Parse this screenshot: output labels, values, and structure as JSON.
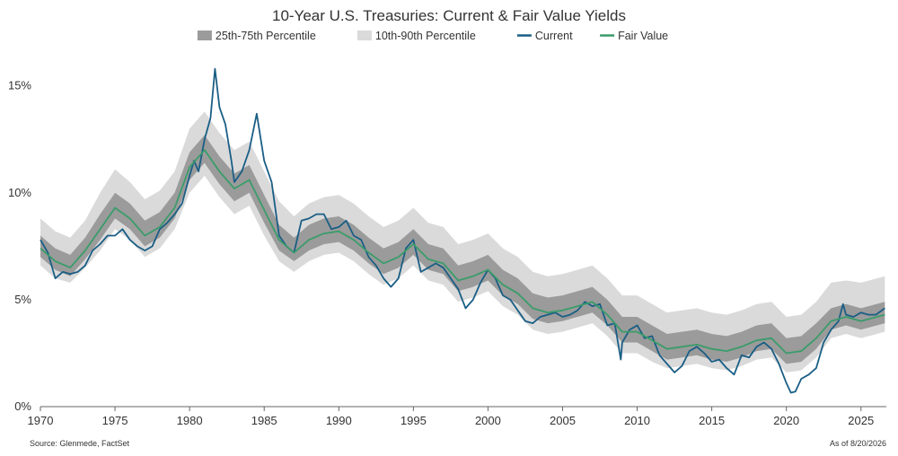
{
  "chart_data": {
    "type": "line",
    "title": "10-Year U.S. Treasuries: Current & Fair Value Yields",
    "xlabel": "",
    "ylabel": "",
    "x_ticks": [
      "1970",
      "1975",
      "1980",
      "1985",
      "1990",
      "1995",
      "2000",
      "2005",
      "2010",
      "2015",
      "2020",
      "2025"
    ],
    "y_ticks": [
      "0%",
      "5%",
      "10%",
      "15%"
    ],
    "xlim": [
      1970,
      2026.7
    ],
    "ylim": [
      0,
      16.5
    ],
    "grid": false,
    "legend_position": "top-center",
    "legend": [
      {
        "label": "25th-75th Percentile",
        "color": "#9b9b9b",
        "kind": "band"
      },
      {
        "label": "10th-90th Percentile",
        "color": "#dadada",
        "kind": "band"
      },
      {
        "label": "Current",
        "color": "#1a5e85",
        "kind": "line"
      },
      {
        "label": "Fair Value",
        "color": "#3a9c6a",
        "kind": "line"
      }
    ],
    "series": [
      {
        "name": "Fair Value",
        "x": [
          1970,
          1971,
          1972,
          1973,
          1974,
          1975,
          1976,
          1977,
          1978,
          1979,
          1980,
          1981,
          1982,
          1983,
          1984,
          1985,
          1986,
          1987,
          1988,
          1989,
          1990,
          1991,
          1992,
          1993,
          1994,
          1995,
          1996,
          1997,
          1998,
          1999,
          2000,
          2001,
          2002,
          2003,
          2004,
          2005,
          2006,
          2007,
          2008,
          2009,
          2010,
          2011,
          2012,
          2013,
          2014,
          2015,
          2016,
          2017,
          2018,
          2019,
          2020,
          2021,
          2022,
          2023,
          2024,
          2025,
          2026.6
        ],
        "values": [
          7.4,
          6.8,
          6.5,
          7.3,
          8.3,
          9.3,
          8.8,
          8.0,
          8.4,
          9.3,
          11.2,
          12.0,
          11.0,
          10.2,
          10.6,
          9.2,
          7.8,
          7.2,
          7.8,
          8.1,
          8.2,
          7.8,
          7.2,
          6.7,
          7.0,
          7.6,
          6.9,
          6.7,
          5.9,
          6.1,
          6.4,
          5.7,
          5.3,
          4.6,
          4.4,
          4.5,
          4.7,
          4.9,
          4.3,
          3.5,
          3.5,
          3.1,
          2.7,
          2.8,
          2.9,
          2.7,
          2.6,
          2.8,
          3.1,
          3.2,
          2.5,
          2.6,
          3.2,
          4.0,
          4.2,
          4.0,
          4.3
        ]
      },
      {
        "name": "Current",
        "x": [
          1970,
          1970.5,
          1971,
          1971.5,
          1972,
          1972.5,
          1973,
          1973.5,
          1974,
          1974.5,
          1975,
          1975.5,
          1976,
          1976.5,
          1977,
          1977.5,
          1978,
          1978.5,
          1979,
          1979.5,
          1980,
          1980.3,
          1980.6,
          1981,
          1981.4,
          1981.7,
          1982,
          1982.4,
          1982.8,
          1983,
          1983.5,
          1984,
          1984.5,
          1985,
          1985.5,
          1986,
          1986.5,
          1987,
          1987.5,
          1988,
          1988.5,
          1989,
          1989.5,
          1990,
          1990.5,
          1991,
          1991.5,
          1992,
          1992.5,
          1993,
          1993.5,
          1994,
          1994.5,
          1995,
          1995.5,
          1996,
          1996.5,
          1997,
          1997.5,
          1998,
          1998.5,
          1999,
          1999.5,
          2000,
          2000.5,
          2001,
          2001.5,
          2002,
          2002.5,
          2003,
          2003.5,
          2004,
          2004.5,
          2005,
          2005.5,
          2006,
          2006.5,
          2007,
          2007.5,
          2008,
          2008.5,
          2008.9,
          2009,
          2009.5,
          2010,
          2010.5,
          2011,
          2011.5,
          2012,
          2012.5,
          2013,
          2013.5,
          2014,
          2014.5,
          2015,
          2015.5,
          2016,
          2016.5,
          2017,
          2017.5,
          2018,
          2018.5,
          2019,
          2019.5,
          2020,
          2020.3,
          2020.6,
          2021,
          2021.5,
          2022,
          2022.5,
          2023,
          2023.5,
          2023.8,
          2024,
          2024.5,
          2025,
          2025.5,
          2026,
          2026.6
        ],
        "values": [
          7.8,
          7.2,
          6.0,
          6.3,
          6.2,
          6.3,
          6.6,
          7.3,
          7.6,
          8.0,
          8.0,
          8.3,
          7.8,
          7.5,
          7.3,
          7.5,
          8.3,
          8.6,
          9.0,
          9.5,
          10.8,
          11.5,
          11.0,
          12.5,
          13.5,
          15.8,
          14.0,
          13.2,
          11.5,
          10.5,
          11.0,
          12.0,
          13.7,
          11.5,
          10.5,
          8.0,
          7.5,
          7.2,
          8.7,
          8.8,
          9.0,
          9.0,
          8.3,
          8.4,
          8.7,
          8.0,
          7.8,
          7.0,
          6.6,
          6.0,
          5.6,
          6.0,
          7.4,
          7.8,
          6.3,
          6.5,
          6.7,
          6.5,
          6.0,
          5.5,
          4.6,
          5.0,
          5.8,
          6.4,
          6.0,
          5.2,
          5.0,
          4.5,
          4.0,
          3.9,
          4.2,
          4.3,
          4.4,
          4.2,
          4.3,
          4.5,
          4.9,
          4.7,
          4.8,
          3.8,
          3.9,
          2.2,
          3.0,
          3.6,
          3.8,
          3.2,
          3.3,
          2.4,
          2.0,
          1.6,
          1.9,
          2.6,
          2.8,
          2.5,
          2.1,
          2.2,
          1.8,
          1.5,
          2.4,
          2.3,
          2.8,
          3.0,
          2.7,
          2.0,
          1.1,
          0.65,
          0.7,
          1.3,
          1.5,
          1.8,
          3.0,
          3.6,
          4.0,
          4.8,
          4.3,
          4.2,
          4.4,
          4.3,
          4.3,
          4.6
        ]
      },
      {
        "name": "25th-75th Percentile",
        "x": [
          1970,
          1971,
          1972,
          1973,
          1974,
          1975,
          1976,
          1977,
          1978,
          1979,
          1980,
          1981,
          1982,
          1983,
          1984,
          1985,
          1986,
          1987,
          1988,
          1989,
          1990,
          1991,
          1992,
          1993,
          1994,
          1995,
          1996,
          1997,
          1998,
          1999,
          2000,
          2001,
          2002,
          2003,
          2004,
          2005,
          2006,
          2007,
          2008,
          2009,
          2010,
          2011,
          2012,
          2013,
          2014,
          2015,
          2016,
          2017,
          2018,
          2019,
          2020,
          2021,
          2022,
          2023,
          2024,
          2025,
          2026.6
        ],
        "lower": [
          7.0,
          6.4,
          6.1,
          6.9,
          7.8,
          8.8,
          8.3,
          7.5,
          7.9,
          8.8,
          10.6,
          11.4,
          10.4,
          9.6,
          10.0,
          8.6,
          7.3,
          6.8,
          7.3,
          7.6,
          7.7,
          7.3,
          6.7,
          6.2,
          6.5,
          7.1,
          6.4,
          6.2,
          5.4,
          5.6,
          5.9,
          5.2,
          4.8,
          4.1,
          3.9,
          4.0,
          4.2,
          4.4,
          3.8,
          3.0,
          3.0,
          2.6,
          2.2,
          2.3,
          2.4,
          2.2,
          2.1,
          2.3,
          2.6,
          2.7,
          2.0,
          2.1,
          2.7,
          3.6,
          3.8,
          3.6,
          3.9
        ],
        "upper": [
          8.0,
          7.4,
          7.1,
          7.9,
          9.0,
          10.0,
          9.5,
          8.7,
          9.1,
          10.0,
          11.9,
          12.7,
          11.7,
          10.9,
          11.3,
          9.9,
          8.5,
          7.9,
          8.5,
          8.8,
          8.9,
          8.5,
          7.9,
          7.4,
          7.7,
          8.3,
          7.6,
          7.4,
          6.6,
          6.8,
          7.1,
          6.4,
          6.0,
          5.3,
          5.1,
          5.2,
          5.4,
          5.6,
          5.0,
          4.2,
          4.2,
          3.8,
          3.4,
          3.5,
          3.6,
          3.4,
          3.3,
          3.5,
          3.8,
          3.9,
          3.2,
          3.3,
          3.9,
          4.6,
          4.8,
          4.6,
          4.9
        ]
      },
      {
        "name": "10th-90th Percentile",
        "x": [
          1970,
          1971,
          1972,
          1973,
          1974,
          1975,
          1976,
          1977,
          1978,
          1979,
          1980,
          1981,
          1982,
          1983,
          1984,
          1985,
          1986,
          1987,
          1988,
          1989,
          1990,
          1991,
          1992,
          1993,
          1994,
          1995,
          1996,
          1997,
          1998,
          1999,
          2000,
          2001,
          2002,
          2003,
          2004,
          2005,
          2006,
          2007,
          2008,
          2009,
          2010,
          2011,
          2012,
          2013,
          2014,
          2015,
          2016,
          2017,
          2018,
          2019,
          2020,
          2021,
          2022,
          2023,
          2024,
          2025,
          2026.6
        ],
        "lower": [
          6.6,
          6.0,
          5.8,
          6.5,
          7.3,
          8.3,
          7.8,
          7.0,
          7.4,
          8.3,
          10.0,
          10.8,
          9.8,
          9.0,
          9.4,
          8.0,
          6.8,
          6.3,
          6.8,
          7.1,
          7.2,
          6.8,
          6.2,
          5.7,
          6.0,
          6.6,
          5.9,
          5.7,
          4.9,
          5.1,
          5.4,
          4.7,
          4.3,
          3.6,
          3.4,
          3.5,
          3.7,
          3.9,
          3.3,
          2.5,
          2.5,
          2.1,
          1.8,
          1.9,
          2.0,
          1.8,
          1.7,
          1.9,
          2.2,
          2.3,
          1.6,
          1.7,
          2.3,
          3.2,
          3.4,
          3.2,
          3.5
        ],
        "upper": [
          8.8,
          8.2,
          7.9,
          8.7,
          10.0,
          11.1,
          10.5,
          9.7,
          10.1,
          11.0,
          13.0,
          13.8,
          12.8,
          12.0,
          12.4,
          11.0,
          9.6,
          8.9,
          9.5,
          9.8,
          9.9,
          9.5,
          8.9,
          8.4,
          8.7,
          9.3,
          8.6,
          8.4,
          7.6,
          7.8,
          8.1,
          7.4,
          7.0,
          6.3,
          6.1,
          6.2,
          6.4,
          6.6,
          6.0,
          5.2,
          5.2,
          4.8,
          4.4,
          4.5,
          4.6,
          4.4,
          4.3,
          4.5,
          4.8,
          4.9,
          4.2,
          4.3,
          4.9,
          5.8,
          5.9,
          5.8,
          6.1
        ]
      }
    ]
  },
  "footer": {
    "source": "Source: Glenmede, FactSet",
    "as_of": "As of 8/20/2026"
  },
  "colors": {
    "band_outer": "#dadada",
    "band_inner": "#9b9b9b",
    "current": "#1a5e85",
    "fair": "#3a9c6a",
    "text": "#333333",
    "axis": "#666666"
  }
}
